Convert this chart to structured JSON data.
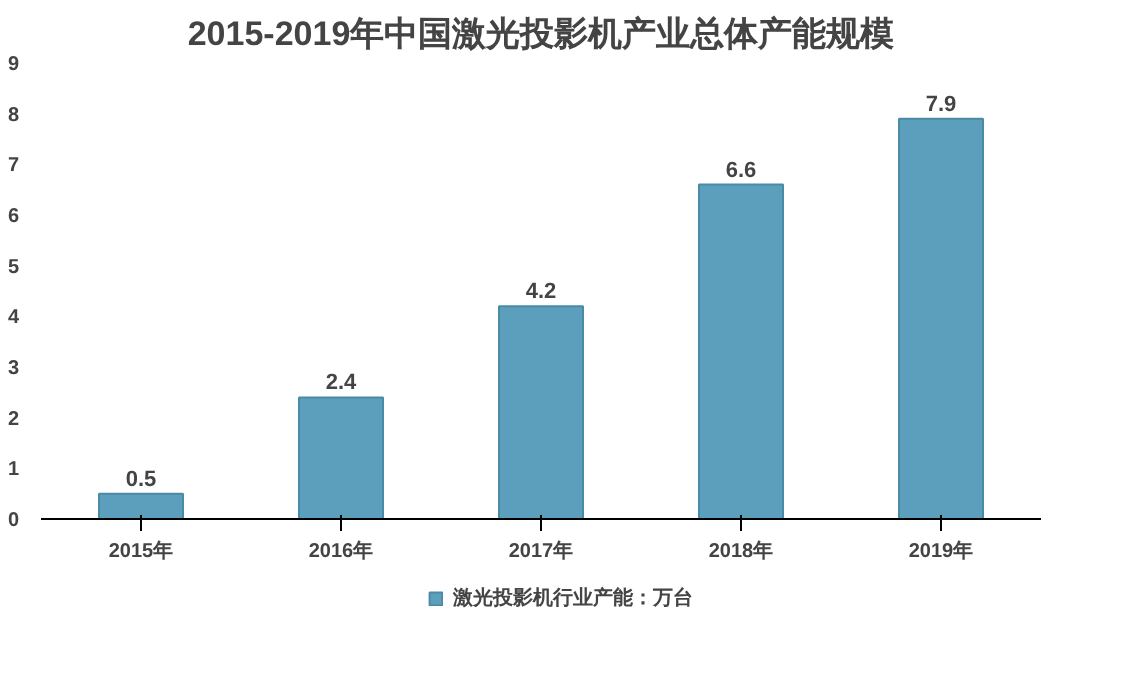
{
  "chart_data": {
    "type": "bar",
    "title": "2015-2019年中国激光投影机产业总体产能规模",
    "categories": [
      "2015年",
      "2016年",
      "2017年",
      "2018年",
      "2019年"
    ],
    "series": [
      {
        "name": "激光投影机行业产能：万台",
        "color": "#5b9fbd",
        "values": [
          0.5,
          2.4,
          4.2,
          6.6,
          7.9
        ]
      }
    ],
    "ylim": [
      0,
      9
    ],
    "yticks": [
      0,
      1,
      2,
      3,
      4,
      5,
      6,
      7,
      8,
      9
    ],
    "grid": false,
    "legend": "bottom",
    "data_labels": true
  }
}
